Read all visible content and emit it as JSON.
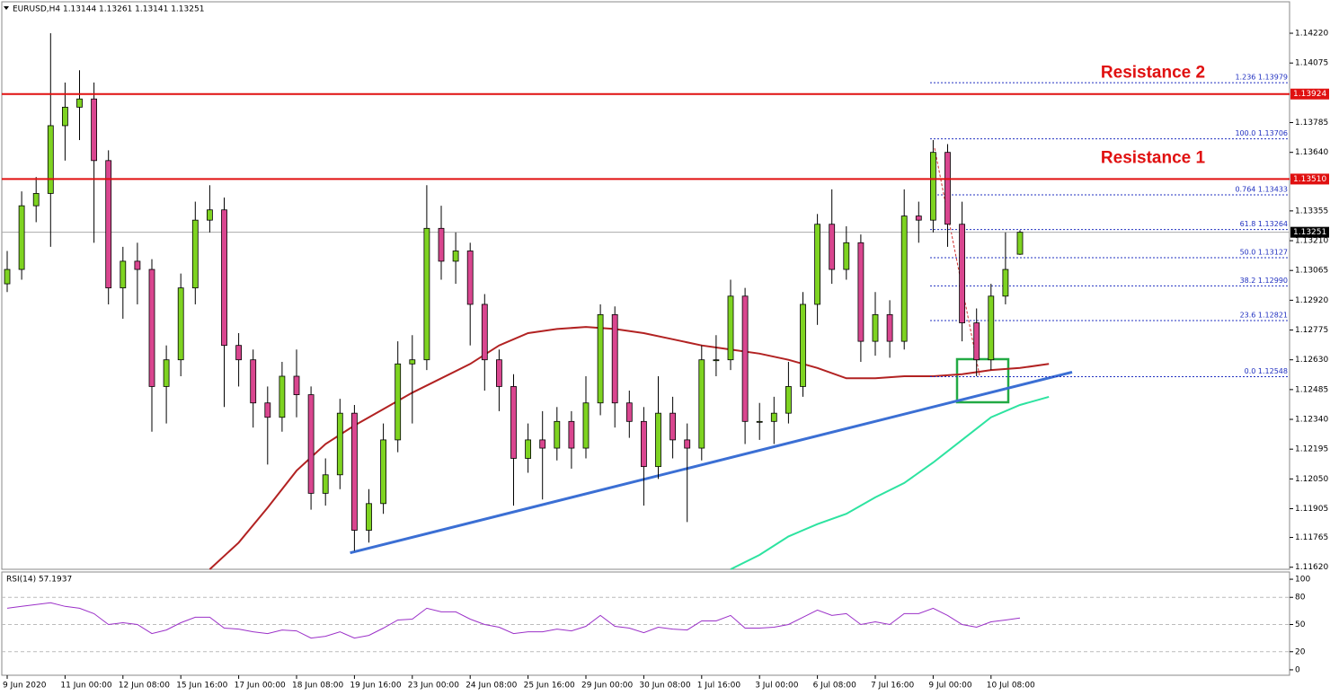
{
  "chart_data": [
    {
      "type": "candlestick",
      "title": "EURUSD,H4 1.13144 1.13261 1.13141 1.13251",
      "categories": [
        "9 Jun 2020",
        null,
        null,
        null,
        "11 Jun 00:00",
        null,
        null,
        null,
        "12 Jun 08:00",
        null,
        null,
        null,
        "15 Jun 16:00",
        null,
        null,
        null,
        "17 Jun 00:00",
        null,
        null,
        null,
        "18 Jun 08:00",
        null,
        null,
        null,
        "19 Jun 16:00",
        null,
        null,
        null,
        "23 Jun 00:00",
        null,
        null,
        null,
        "24 Jun 08:00",
        null,
        null,
        null,
        "25 Jun 16:00",
        null,
        null,
        null,
        "29 Jun 00:00",
        null,
        null,
        null,
        "30 Jun 08:00",
        null,
        null,
        null,
        "1 Jul 16:00",
        null,
        null,
        null,
        "3 Jul 00:00",
        null,
        null,
        null,
        "6 Jul 08:00",
        null,
        null,
        null,
        "7 Jul 16:00",
        null,
        null,
        null,
        "9 Jul 00:00",
        null,
        null,
        null,
        "10 Jul 08:00",
        null,
        null
      ],
      "candles": [
        [
          1.13,
          1.1316,
          1.1296,
          1.1307
        ],
        [
          1.1307,
          1.1345,
          1.1302,
          1.1338
        ],
        [
          1.1338,
          1.1352,
          1.133,
          1.1344
        ],
        [
          1.1344,
          1.1422,
          1.1318,
          1.1377
        ],
        [
          1.1377,
          1.1398,
          1.136,
          1.1386
        ],
        [
          1.1386,
          1.1404,
          1.137,
          1.139
        ],
        [
          1.139,
          1.1398,
          1.132,
          1.136
        ],
        [
          1.136,
          1.1365,
          1.129,
          1.1298
        ],
        [
          1.1298,
          1.1318,
          1.1283,
          1.1311
        ],
        [
          1.1311,
          1.132,
          1.129,
          1.1307
        ],
        [
          1.1307,
          1.1312,
          1.1228,
          1.125
        ],
        [
          1.125,
          1.127,
          1.1232,
          1.1263
        ],
        [
          1.1263,
          1.1305,
          1.1255,
          1.1298
        ],
        [
          1.1298,
          1.134,
          1.129,
          1.1331
        ],
        [
          1.1331,
          1.1348,
          1.1325,
          1.1336
        ],
        [
          1.1336,
          1.1342,
          1.124,
          1.127
        ],
        [
          1.127,
          1.1276,
          1.125,
          1.1263
        ],
        [
          1.1263,
          1.1268,
          1.123,
          1.1242
        ],
        [
          1.1242,
          1.125,
          1.1212,
          1.1235
        ],
        [
          1.1235,
          1.1262,
          1.1228,
          1.1255
        ],
        [
          1.1255,
          1.1268,
          1.1235,
          1.1246
        ],
        [
          1.1246,
          1.125,
          1.119,
          1.1198
        ],
        [
          1.1198,
          1.1215,
          1.1192,
          1.1207
        ],
        [
          1.1207,
          1.1244,
          1.12,
          1.1237
        ],
        [
          1.1237,
          1.1241,
          1.117,
          1.118
        ],
        [
          1.118,
          1.12,
          1.1174,
          1.1193
        ],
        [
          1.1193,
          1.1232,
          1.1188,
          1.1224
        ],
        [
          1.1224,
          1.1272,
          1.1218,
          1.1261
        ],
        [
          1.1261,
          1.1275,
          1.1232,
          1.1263
        ],
        [
          1.1263,
          1.1348,
          1.1258,
          1.1327
        ],
        [
          1.1327,
          1.1338,
          1.1302,
          1.1311
        ],
        [
          1.1311,
          1.1325,
          1.13,
          1.1316
        ],
        [
          1.1316,
          1.132,
          1.127,
          1.129
        ],
        [
          1.129,
          1.1295,
          1.1248,
          1.1263
        ],
        [
          1.1263,
          1.1268,
          1.1238,
          1.125
        ],
        [
          1.125,
          1.1256,
          1.1192,
          1.1215
        ],
        [
          1.1215,
          1.1232,
          1.1208,
          1.1224
        ],
        [
          1.1224,
          1.1238,
          1.1195,
          1.122
        ],
        [
          1.122,
          1.124,
          1.1214,
          1.1233
        ],
        [
          1.1233,
          1.1238,
          1.121,
          1.122
        ],
        [
          1.122,
          1.1255,
          1.1215,
          1.1242
        ],
        [
          1.1242,
          1.129,
          1.1236,
          1.1285
        ],
        [
          1.1285,
          1.1289,
          1.123,
          1.1242
        ],
        [
          1.1242,
          1.1248,
          1.1225,
          1.1233
        ],
        [
          1.1233,
          1.124,
          1.1192,
          1.1211
        ],
        [
          1.1211,
          1.1255,
          1.1205,
          1.1237
        ],
        [
          1.1237,
          1.1245,
          1.1215,
          1.1224
        ],
        [
          1.1224,
          1.1232,
          1.1184,
          1.122
        ],
        [
          1.122,
          1.127,
          1.1214,
          1.1263
        ],
        [
          1.1263,
          1.1275,
          1.1255,
          1.1263
        ],
        [
          1.1263,
          1.1302,
          1.1258,
          1.1294
        ],
        [
          1.1294,
          1.1298,
          1.1222,
          1.1233
        ],
        [
          1.1233,
          1.1242,
          1.1224,
          1.1233
        ],
        [
          1.1233,
          1.1245,
          1.1222,
          1.1237
        ],
        [
          1.1237,
          1.1262,
          1.1232,
          1.125
        ],
        [
          1.125,
          1.1296,
          1.1245,
          1.129
        ],
        [
          1.129,
          1.1334,
          1.128,
          1.1329
        ],
        [
          1.1329,
          1.1346,
          1.13,
          1.1307
        ],
        [
          1.1307,
          1.1328,
          1.1302,
          1.132
        ],
        [
          1.132,
          1.1324,
          1.1262,
          1.1272
        ],
        [
          1.1272,
          1.1296,
          1.1265,
          1.1285
        ],
        [
          1.1285,
          1.1292,
          1.1264,
          1.1272
        ],
        [
          1.1272,
          1.1346,
          1.1268,
          1.1333
        ],
        [
          1.1333,
          1.134,
          1.132,
          1.1331
        ],
        [
          1.1331,
          1.137,
          1.1325,
          1.1364
        ],
        [
          1.1364,
          1.1368,
          1.1318,
          1.1329
        ],
        [
          1.1329,
          1.134,
          1.1272,
          1.1281
        ],
        [
          1.1281,
          1.1288,
          1.1255,
          1.1263
        ],
        [
          1.1263,
          1.13,
          1.1258,
          1.1294
        ],
        [
          1.1294,
          1.1325,
          1.129,
          1.1307
        ],
        [
          1.13144,
          1.13261,
          1.13141,
          1.13251
        ]
      ],
      "up_color": "#7ed321",
      "down_color": "#d9468f",
      "ylim": [
        1.1161,
        1.1436
      ],
      "yticks": [
        {
          "value": 1.1422,
          "label": "1.14220"
        },
        {
          "value": 1.14075,
          "label": "1.14075"
        },
        {
          "value": 1.13785,
          "label": "1.13785"
        },
        {
          "value": 1.1364,
          "label": "1.13640"
        },
        {
          "value": 1.13355,
          "label": "1.13355"
        },
        {
          "value": 1.1321,
          "label": "1.13210"
        },
        {
          "value": 1.13065,
          "label": "1.13065"
        },
        {
          "value": 1.1292,
          "label": "1.12920"
        },
        {
          "value": 1.12775,
          "label": "1.12775"
        },
        {
          "value": 1.1263,
          "label": "1.12630"
        },
        {
          "value": 1.12485,
          "label": "1.12485"
        },
        {
          "value": 1.1234,
          "label": "1.12340"
        },
        {
          "value": 1.12195,
          "label": "1.12195"
        },
        {
          "value": 1.1205,
          "label": "1.12050"
        },
        {
          "value": 1.11905,
          "label": "1.11905"
        },
        {
          "value": 1.11765,
          "label": "1.11765"
        },
        {
          "value": 1.1162,
          "label": "1.11620"
        }
      ],
      "lines": [
        {
          "color": "#b22222",
          "x": [
            14,
            16,
            18,
            20,
            22,
            24,
            26,
            28,
            30,
            32,
            34,
            36,
            38,
            40,
            42,
            44,
            46,
            48,
            50,
            52,
            54,
            56,
            58,
            60,
            62,
            64,
            66,
            68,
            70,
            72
          ],
          "values": [
            1.1161,
            1.1174,
            1.1191,
            1.1209,
            1.1222,
            1.1231,
            1.1239,
            1.1247,
            1.1254,
            1.1261,
            1.127,
            1.1276,
            1.1278,
            1.1279,
            1.1278,
            1.1276,
            1.1273,
            1.127,
            1.1268,
            1.1266,
            1.1263,
            1.1259,
            1.1254,
            1.1254,
            1.1255,
            1.1255,
            1.1256,
            1.1258,
            1.1259,
            1.1261
          ]
        },
        {
          "color": "#2de3a0",
          "x": [
            50,
            52,
            54,
            56,
            58,
            60,
            62,
            64,
            66,
            68,
            70,
            72
          ],
          "values": [
            1.1161,
            1.1168,
            1.1177,
            1.1183,
            1.1188,
            1.1196,
            1.1203,
            1.1213,
            1.1224,
            1.1235,
            1.1241,
            1.1245
          ]
        },
        {
          "color": "#3b6fd4",
          "x": [
            23.7,
            73.6
          ],
          "values": [
            1.1169,
            1.1257
          ]
        }
      ],
      "levels": [
        {
          "value": 1.13924,
          "label": "1.13924",
          "text": "Resistance 2",
          "color": "#e01010"
        },
        {
          "value": 1.1351,
          "label": "1.13510",
          "text": "Resistance 1",
          "color": "#e01010"
        }
      ],
      "current": {
        "value": 1.13251,
        "label": "1.13251"
      },
      "fib": [
        {
          "value": 1.13979,
          "label": "1.236 1.13979"
        },
        {
          "value": 1.13706,
          "label": "100.0 1.13706"
        },
        {
          "value": 1.13433,
          "label": "0.764 1.13433"
        },
        {
          "value": 1.13264,
          "label": "61.8 1.13264"
        },
        {
          "value": 1.13127,
          "label": "50.0 1.13127"
        },
        {
          "value": 1.1299,
          "label": "38.2 1.12990"
        },
        {
          "value": 1.12821,
          "label": "23.6 1.12821"
        },
        {
          "value": 1.12548,
          "label": "0.0 1.12548"
        }
      ],
      "fib_color": "#2030c0"
    },
    {
      "type": "line",
      "title": "RSI(14) 57.1937",
      "values": [
        68,
        70,
        72,
        74,
        70,
        68,
        62,
        50,
        52,
        50,
        40,
        44,
        52,
        58,
        58,
        46,
        45,
        42,
        40,
        44,
        43,
        35,
        37,
        42,
        35,
        38,
        46,
        55,
        56,
        68,
        64,
        64,
        56,
        50,
        47,
        40,
        42,
        42,
        45,
        43,
        48,
        60,
        48,
        46,
        41,
        47,
        45,
        44,
        54,
        54,
        60,
        46,
        46,
        47,
        50,
        58,
        66,
        60,
        62,
        50,
        53,
        50,
        62,
        62,
        68,
        60,
        50,
        47,
        53,
        55,
        57.1937
      ],
      "color": "#9b30c8",
      "ylim": [
        -6,
        108
      ],
      "yticks": [
        100,
        80,
        50,
        20,
        0
      ],
      "levels": [
        80,
        50,
        20
      ]
    }
  ]
}
